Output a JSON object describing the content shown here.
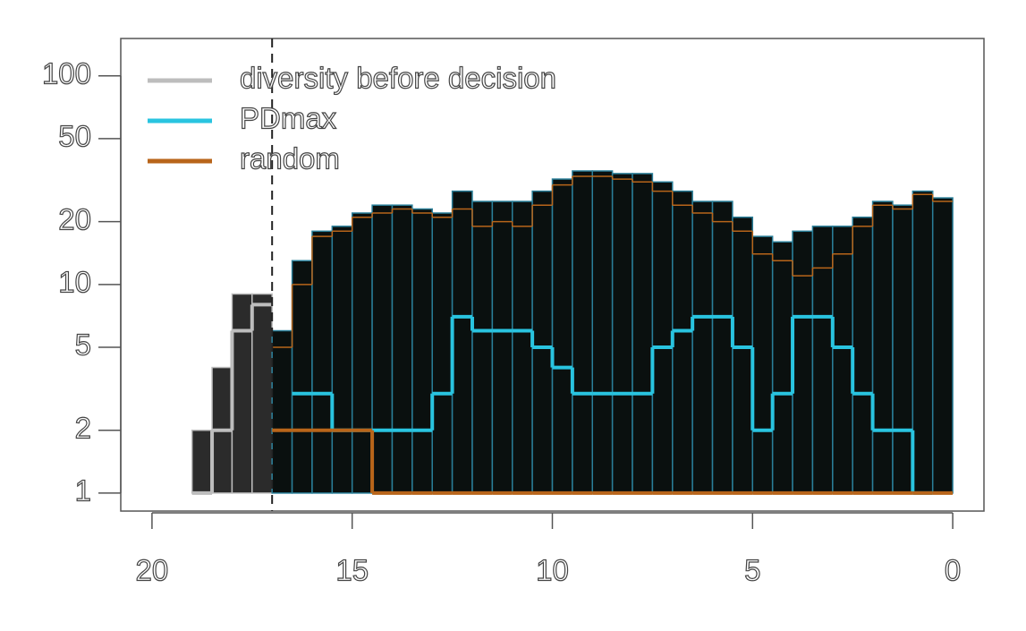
{
  "chart_data": {
    "type": "step",
    "log_y": true,
    "legend_position": "topleft",
    "xlim": [
      20.78,
      -0.78
    ],
    "ylim": [
      0.82,
      151
    ],
    "xticks": [
      20,
      15,
      10,
      5,
      0
    ],
    "yticks": [
      1,
      2,
      5,
      10,
      20,
      50,
      100
    ],
    "vline": 17,
    "series": [
      {
        "name": "diversity before decision",
        "color": "#bdbdbd",
        "bins": [
          19,
          18.5,
          18,
          17.5,
          17
        ],
        "values": [
          1,
          2,
          6,
          8
        ],
        "range_upper": [
          2,
          4,
          9,
          9
        ],
        "range_style": "fill",
        "range_color": "#2b2b2b"
      },
      {
        "name": "PDmax",
        "color": "#29c4e0",
        "bins": [
          17,
          16.5,
          16,
          15.5,
          15,
          14.5,
          14,
          13.5,
          13,
          12.5,
          12,
          11.5,
          11,
          10.5,
          10,
          9.5,
          9,
          8.5,
          8,
          7.5,
          7,
          6.5,
          6,
          5.5,
          5,
          4.5,
          4,
          3.5,
          3,
          2.5,
          2,
          1.5,
          1,
          0.5,
          0
        ],
        "values": [
          null,
          3,
          3,
          2,
          2,
          2,
          2,
          2,
          3,
          7,
          6,
          6,
          6,
          5,
          4,
          3,
          3,
          3,
          3,
          5,
          6,
          7,
          7,
          5,
          2,
          3,
          7,
          7,
          5,
          3,
          2,
          2,
          1,
          null
        ],
        "range_upper": [
          6,
          13,
          18,
          19,
          22,
          24,
          24,
          23,
          22,
          28,
          25,
          25,
          25,
          28,
          32,
          35,
          35,
          34,
          34,
          31,
          28,
          25,
          25,
          21,
          17,
          16,
          18,
          19,
          19,
          21,
          25,
          24,
          28,
          26
        ],
        "range_style": "fill",
        "range_color": "#0a100f",
        "range_edge": "#2a7f99"
      },
      {
        "name": "random",
        "color": "#b8651a",
        "bins": [
          17,
          16.5,
          16,
          15.5,
          15,
          14.5,
          14,
          13.5,
          13,
          12.5,
          12,
          11.5,
          11,
          10.5,
          10,
          9.5,
          9,
          8.5,
          8,
          7.5,
          7,
          6.5,
          6,
          5.5,
          5,
          4.5,
          4,
          3.5,
          3,
          2.5,
          2,
          1.5,
          1,
          0.5,
          0
        ],
        "values": [
          2,
          2,
          2,
          2,
          2,
          1,
          1,
          1,
          1,
          1,
          1,
          1,
          1,
          1,
          1,
          1,
          1,
          1,
          1,
          1,
          1,
          1,
          1,
          1,
          1,
          1,
          1,
          1,
          1,
          1,
          1,
          1,
          1,
          1
        ],
        "range_upper": [
          5,
          10,
          17,
          18,
          21,
          22,
          23,
          22,
          21,
          23,
          19,
          20,
          19,
          24,
          30,
          33,
          33,
          32,
          31,
          28,
          24,
          22,
          20,
          18,
          14,
          13,
          11,
          12,
          14,
          19,
          24,
          23,
          27,
          25
        ],
        "range_style": "line"
      }
    ]
  }
}
